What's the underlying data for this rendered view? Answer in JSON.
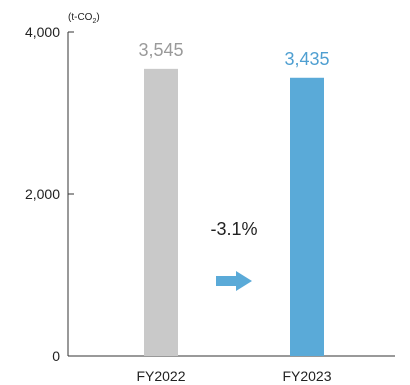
{
  "chart_data": {
    "type": "bar",
    "unit_label": {
      "main": "(t-CO",
      "sub": "2",
      "close": ")"
    },
    "categories": [
      "FY2022",
      "FY2023"
    ],
    "values": [
      3545,
      3435
    ],
    "value_labels": [
      "3,545",
      "3,435"
    ],
    "colors": [
      "#c9c9c9",
      "#5aaad8"
    ],
    "label_colors": [
      "#9a9a9a",
      "#4f9fd1"
    ],
    "ylim": [
      0,
      4000
    ],
    "y_ticks": [
      0,
      2000,
      4000
    ],
    "y_tick_labels": [
      "0",
      "2,000",
      "4,000"
    ],
    "grid": false,
    "annotation": {
      "text": "-3.1%",
      "arrow_color": "#5aaad8"
    }
  }
}
